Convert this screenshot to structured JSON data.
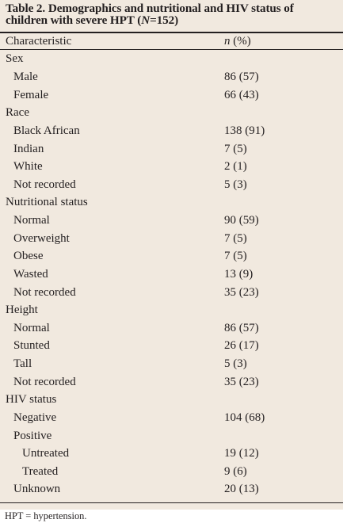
{
  "table": {
    "caption_prefix": "Table 2. Demographics and nutritional and HIV status of children with severe HPT (",
    "caption_n_var": "N",
    "caption_suffix": "=152)",
    "col_characteristic": "Characteristic",
    "col_n_var": "n",
    "col_n_rest": " (%)",
    "rows": [
      {
        "label": "Sex",
        "value": ""
      },
      {
        "label": "Male",
        "value": "86 (57)"
      },
      {
        "label": "Female",
        "value": "66 (43)"
      },
      {
        "label": "Race",
        "value": ""
      },
      {
        "label": "Black African",
        "value": "138 (91)"
      },
      {
        "label": "Indian",
        "value": "7 (5)"
      },
      {
        "label": "White",
        "value": "2 (1)"
      },
      {
        "label": "Not recorded",
        "value": "5 (3)"
      },
      {
        "label": "Nutritional status",
        "value": ""
      },
      {
        "label": "Normal",
        "value": "90 (59)"
      },
      {
        "label": "Overweight",
        "value": "7 (5)"
      },
      {
        "label": "Obese",
        "value": "7 (5)"
      },
      {
        "label": "Wasted",
        "value": "13 (9)"
      },
      {
        "label": "Not recorded",
        "value": "35 (23)"
      },
      {
        "label": "Height",
        "value": ""
      },
      {
        "label": "Normal",
        "value": "86 (57)"
      },
      {
        "label": "Stunted",
        "value": "26 (17)"
      },
      {
        "label": "Tall",
        "value": "5 (3)"
      },
      {
        "label": "Not recorded",
        "value": "35 (23)"
      },
      {
        "label": "HIV status",
        "value": ""
      },
      {
        "label": "Negative",
        "value": "104 (68)"
      },
      {
        "label": "Positive",
        "value": ""
      },
      {
        "label": "Untreated",
        "value": "19 (12)"
      },
      {
        "label": "Treated",
        "value": "9 (6)"
      },
      {
        "label": "Unknown",
        "value": "20 (13)"
      }
    ]
  },
  "footnote": "HPT = hypertension."
}
